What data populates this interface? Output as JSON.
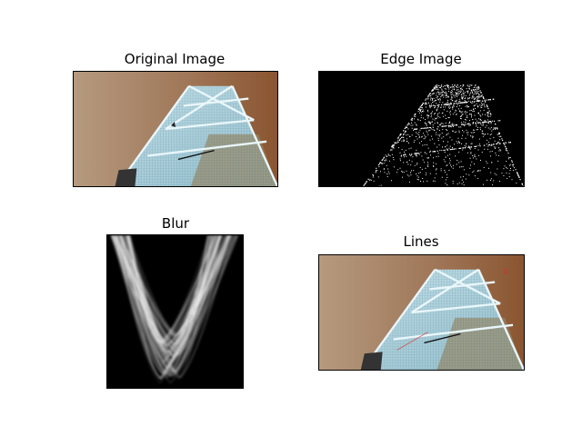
{
  "figure": {
    "panels": [
      {
        "title": "Original Image",
        "kind": "photo"
      },
      {
        "title": "Edge Image",
        "kind": "edges"
      },
      {
        "title": "Blur",
        "kind": "hough"
      },
      {
        "title": "Lines",
        "kind": "photo-lines"
      }
    ]
  },
  "colors": {
    "sky_left": "#b5967a",
    "sky_right": "#8a5632",
    "building_light": "#a9d4e2",
    "building_mid": "#86b7c8",
    "edge_bg": "#000000",
    "edge_fg": "#ffffff"
  }
}
